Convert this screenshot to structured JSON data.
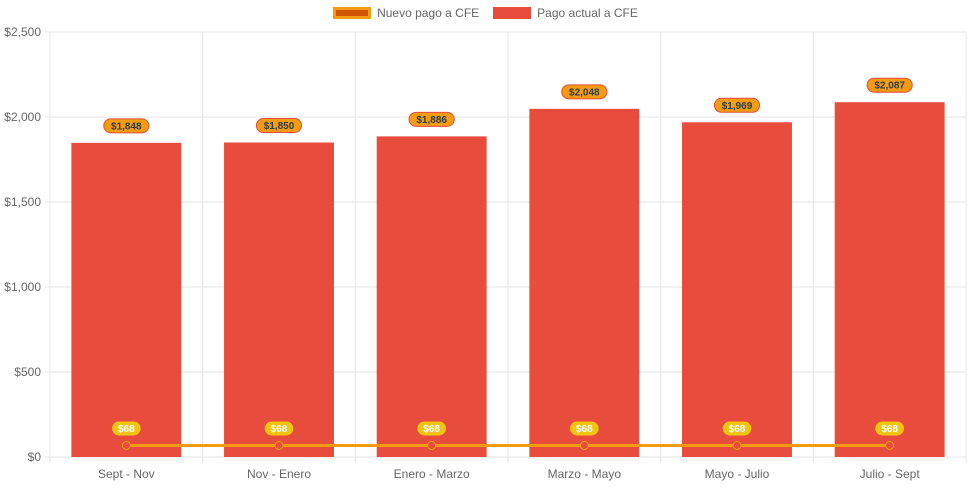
{
  "colors": {
    "bar": "#e74c3c",
    "line": "#f39c12",
    "line_fill": "#d35400",
    "bar_label_bg": "#f39c12",
    "bar_label_text": "#2c3e50",
    "line_label_bg": "#f1c40f",
    "line_label_text": "#ffffff",
    "grid": "#e5e5e5",
    "tick_text": "#666666"
  },
  "legend": {
    "line_label": "Nuevo pago a CFE",
    "bar_label": "Pago actual a CFE"
  },
  "chart_data": {
    "type": "bar",
    "categories": [
      "Sept - Nov",
      "Nov - Enero",
      "Enero - Marzo",
      "Marzo - Mayo",
      "Mayo - Julio",
      "Julio - Sept"
    ],
    "series": [
      {
        "name": "Pago actual a CFE",
        "type": "bar",
        "values": [
          1848,
          1850,
          1886,
          2048,
          1969,
          2087
        ],
        "labels": [
          "$1,848",
          "$1,850",
          "$1,886",
          "$2,048",
          "$1,969",
          "$2,087"
        ]
      },
      {
        "name": "Nuevo pago a CFE",
        "type": "line",
        "values": [
          68,
          68,
          68,
          68,
          68,
          68
        ],
        "labels": [
          "$68",
          "$68",
          "$68",
          "$68",
          "$68",
          "$68"
        ]
      }
    ],
    "ylim": [
      0,
      2500
    ],
    "yticks": [
      0,
      500,
      1000,
      1500,
      2000,
      2500
    ],
    "ytick_labels": [
      "$0",
      "$500",
      "$1,000",
      "$1,500",
      "$2,000",
      "$2,500"
    ],
    "grid": true,
    "legend_position": "top-center"
  }
}
